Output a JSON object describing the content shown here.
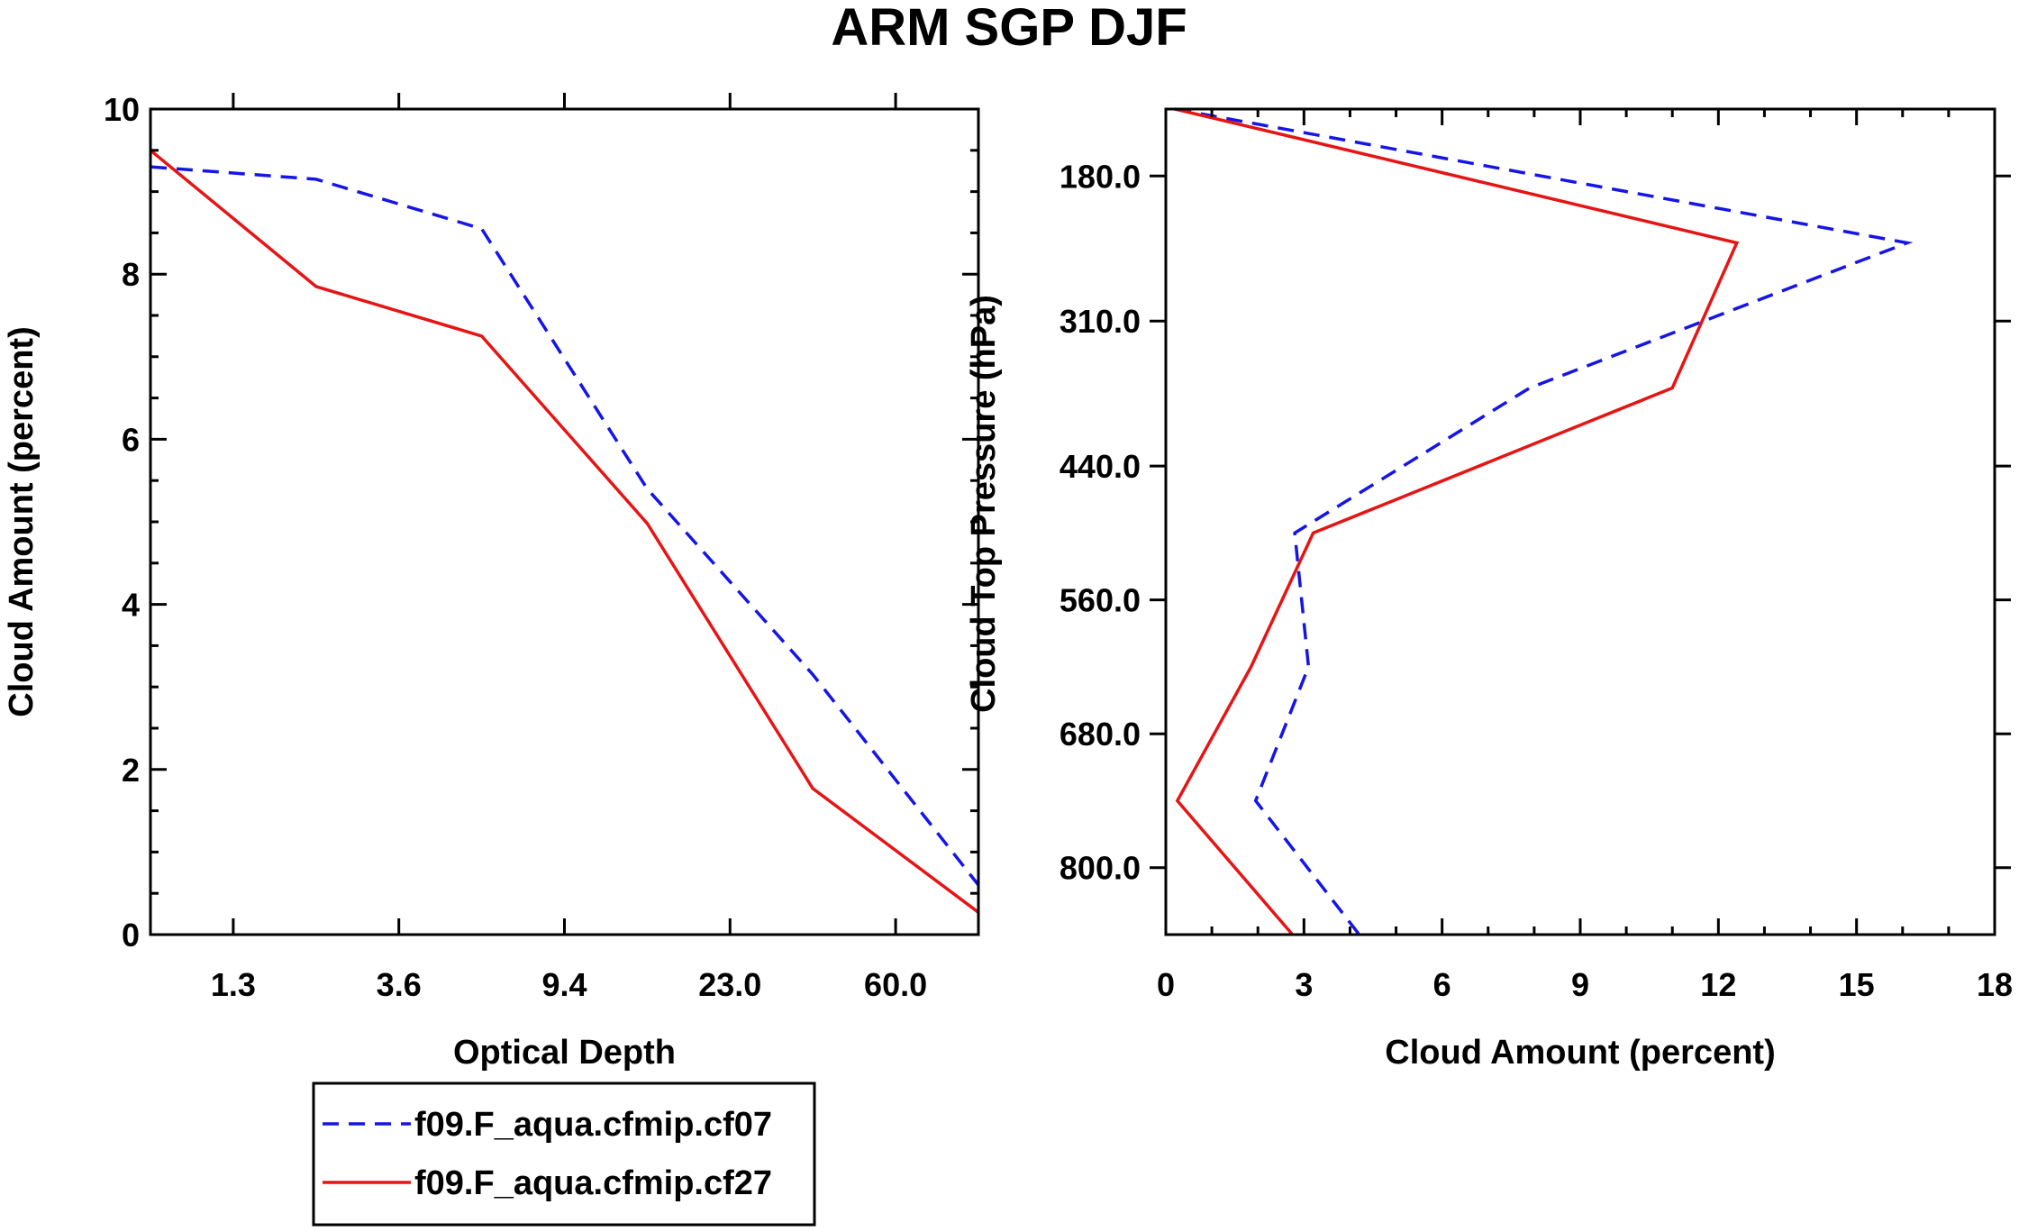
{
  "figure_title": "ARM SGP DJF",
  "colors": {
    "series1": "#1515e6",
    "series2": "#e61515",
    "axes": "#000000"
  },
  "legend": {
    "entries": [
      {
        "label": "f09.F_aqua.cfmip.cf07",
        "style": "dashed",
        "color": "#1515e6"
      },
      {
        "label": "f09.F_aqua.cfmip.cf27",
        "style": "solid",
        "color": "#e61515"
      }
    ]
  },
  "chart_data": [
    {
      "type": "line",
      "title": "",
      "xlabel": "Optical Depth",
      "ylabel": "Cloud Amount (percent)",
      "x_index": [
        0,
        1,
        2,
        3,
        4,
        5
      ],
      "x_tick_labels": [
        "1.3",
        "3.6",
        "9.4",
        "23.0",
        "60.0"
      ],
      "x_tick_positions": [
        0.5,
        1.5,
        2.5,
        3.5,
        4.5
      ],
      "xlim": [
        0,
        5
      ],
      "ylim": [
        0,
        10
      ],
      "y_tick_labels": [
        "0",
        "2",
        "4",
        "6",
        "8",
        "10"
      ],
      "y_tick_values": [
        0,
        2,
        4,
        6,
        8,
        10
      ],
      "series": [
        {
          "name": "f09.F_aqua.cfmip.cf07",
          "style": "dashed",
          "x": [
            0,
            1,
            2,
            3,
            4,
            5
          ],
          "values": [
            9.3,
            9.15,
            8.55,
            5.4,
            3.15,
            0.6
          ]
        },
        {
          "name": "f09.F_aqua.cfmip.cf27",
          "style": "solid",
          "x": [
            0,
            1,
            2,
            3,
            4,
            5
          ],
          "values": [
            9.5,
            7.85,
            7.25,
            4.98,
            1.77,
            0.27
          ]
        }
      ]
    },
    {
      "type": "line",
      "title": "",
      "xlabel": "Cloud Amount (percent)",
      "ylabel": "Cloud Top Pressure (hPa)",
      "xlim": [
        0,
        18
      ],
      "x_tick_labels": [
        "0",
        "3",
        "6",
        "9",
        "12",
        "15",
        "18"
      ],
      "x_tick_values": [
        0,
        3,
        6,
        9,
        12,
        15,
        18
      ],
      "pressure_levels": [
        120,
        240,
        370,
        500,
        620,
        740,
        860
      ],
      "ylim": [
        120,
        860
      ],
      "y_inverted": true,
      "y_tick_labels": [
        "180.0",
        "310.0",
        "440.0",
        "560.0",
        "680.0",
        "800.0"
      ],
      "y_tick_values": [
        180,
        310,
        440,
        560,
        680,
        800
      ],
      "series": [
        {
          "name": "f09.F_aqua.cfmip.cf07",
          "style": "dashed",
          "values": [
            0.2,
            16.1,
            7.9,
            2.8,
            3.1,
            1.95,
            4.2
          ]
        },
        {
          "name": "f09.F_aqua.cfmip.cf27",
          "style": "solid",
          "values": [
            0.2,
            12.4,
            11.0,
            3.2,
            1.85,
            0.25,
            2.75
          ]
        }
      ]
    }
  ]
}
